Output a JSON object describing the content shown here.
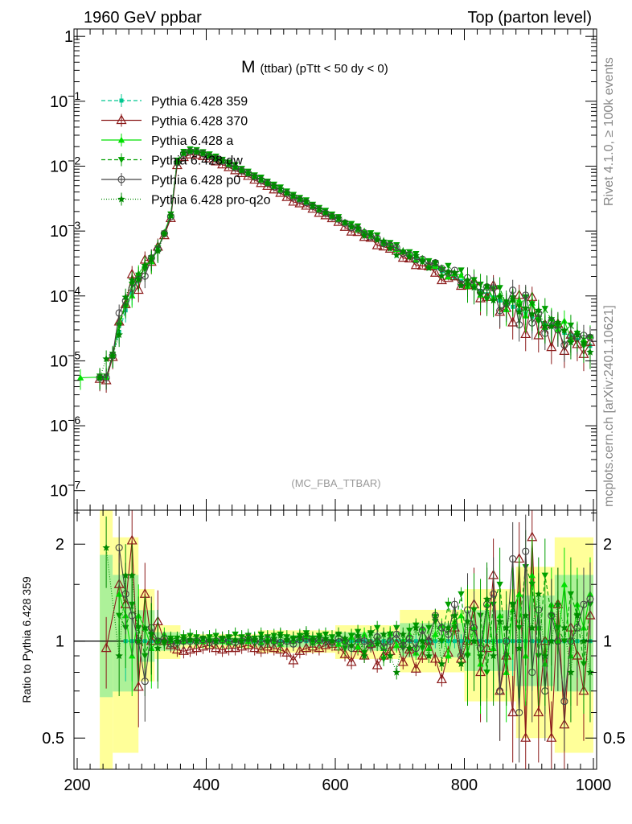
{
  "header": {
    "left": "1960 GeV ppbar",
    "right": "Top (parton level)"
  },
  "side_labels": {
    "rivet": "Rivet 4.1.0, ≥ 100k events",
    "source": "mcplots.cern.ch [arXiv:2401.10621]"
  },
  "chart_data": {
    "type": "line",
    "title": "M (ttbar) (pTtt < 50 dy < 0)",
    "title_main": "M",
    "title_sub": "(ttbar) (pTtt < 50 dy < 0)",
    "watermark": "(MC_FBA_TTBAR)",
    "xlabel": "",
    "ylabel": "",
    "ratio_ylabel": "Ratio to Pythia 6.428 359",
    "xlim": [
      195,
      1005
    ],
    "ylim": [
      5e-08,
      1.3
    ],
    "yscale": "log",
    "ratio_ylim": [
      0.4,
      2.55
    ],
    "x_ticks": [
      "200",
      "400",
      "600",
      "800",
      "1000"
    ],
    "x_tick_values": [
      200,
      400,
      600,
      800,
      1000
    ],
    "y_ticks": [
      "1",
      "10^-1",
      "10^-2",
      "10^-3",
      "10^-4",
      "10^-5",
      "10^-6",
      "10^-7"
    ],
    "y_tick_labels": [
      {
        "mant": "1",
        "exp": ""
      },
      {
        "mant": "10",
        "exp": "−1"
      },
      {
        "mant": "10",
        "exp": "−2"
      },
      {
        "mant": "10",
        "exp": "−3"
      },
      {
        "mant": "10",
        "exp": "−4"
      },
      {
        "mant": "10",
        "exp": "−5"
      },
      {
        "mant": "10",
        "exp": "−6"
      },
      {
        "mant": "10",
        "exp": "−7"
      }
    ],
    "y_tick_values": [
      1,
      0.1,
      0.01,
      0.001,
      0.0001,
      1e-05,
      1e-06,
      1e-07
    ],
    "ratio_ticks": [
      "0.5",
      "1",
      "2"
    ],
    "ratio_tick_values": [
      0.5,
      1,
      2
    ],
    "legend_position": "top-left",
    "x": [
      205,
      235,
      245,
      255,
      265,
      275,
      285,
      295,
      305,
      315,
      325,
      335,
      345,
      355,
      365,
      375,
      385,
      395,
      405,
      415,
      425,
      435,
      445,
      455,
      465,
      475,
      485,
      495,
      505,
      515,
      525,
      535,
      545,
      555,
      565,
      575,
      585,
      595,
      605,
      615,
      625,
      635,
      645,
      655,
      665,
      675,
      685,
      695,
      705,
      715,
      725,
      735,
      745,
      755,
      765,
      775,
      785,
      795,
      805,
      815,
      825,
      835,
      845,
      855,
      865,
      875,
      885,
      895,
      905,
      915,
      925,
      935,
      945,
      955,
      965,
      975,
      985,
      995
    ],
    "reference_values": [
      0,
      5.5e-06,
      5.5e-06,
      1.2e-05,
      2.8e-05,
      6e-05,
      0.00011,
      0.00018,
      0.00027,
      0.00035,
      0.00052,
      0.0009,
      0.0017,
      0.0115,
      0.0155,
      0.0168,
      0.0165,
      0.0155,
      0.0142,
      0.013,
      0.0118,
      0.0106,
      0.0095,
      0.0085,
      0.0076,
      0.0068,
      0.0061,
      0.0054,
      0.0048,
      0.0043,
      0.0038,
      0.0034,
      0.003,
      0.0027,
      0.0024,
      0.0021,
      0.00188,
      0.00168,
      0.0015,
      0.00133,
      0.00119,
      0.00106,
      0.00094,
      0.00084,
      0.00075,
      0.00067,
      0.0006,
      0.00053,
      0.00047,
      0.00042,
      0.00038,
      0.00034,
      0.0003,
      0.00027,
      0.00024,
      0.000215,
      0.00019,
      0.00017,
      0.000152,
      0.000135,
      0.00012,
      0.000106,
      9.5e-05,
      8.5e-05,
      7.6e-05,
      6.8e-05,
      6e-05,
      5.4e-05,
      4.8e-05,
      4.3e-05,
      3.8e-05,
      3.4e-05,
      3e-05,
      2.7e-05,
      2.4e-05,
      2.1e-05,
      1.9e-05,
      1.7e-05
    ],
    "ratio_band": [
      {
        "x": [
          235,
          255
        ],
        "lo": 0.4,
        "hi": 2.55
      },
      {
        "x": [
          255,
          295
        ],
        "lo": 0.45,
        "hi": 2.1
      },
      {
        "x": [
          295,
          320
        ],
        "lo": 0.75,
        "hi": 1.45
      },
      {
        "x": [
          320,
          360
        ],
        "lo": 0.88,
        "hi": 1.12
      },
      {
        "x": [
          360,
          480
        ],
        "lo": 0.95,
        "hi": 1.05
      },
      {
        "x": [
          480,
          600
        ],
        "lo": 0.92,
        "hi": 1.08
      },
      {
        "x": [
          600,
          700
        ],
        "lo": 0.88,
        "hi": 1.12
      },
      {
        "x": [
          700,
          800
        ],
        "lo": 0.8,
        "hi": 1.25
      },
      {
        "x": [
          800,
          880
        ],
        "lo": 0.65,
        "hi": 1.45
      },
      {
        "x": [
          880,
          940
        ],
        "lo": 0.5,
        "hi": 1.7
      },
      {
        "x": [
          940,
          1000
        ],
        "lo": 0.45,
        "hi": 2.1
      }
    ],
    "series": [
      {
        "name": "Pythia 6.428 359",
        "color": "#00c890",
        "marker": "square",
        "dash": "5,3",
        "scale": 1.0,
        "ratio": [
          0,
          0,
          0,
          0,
          0,
          1,
          1,
          1,
          1,
          1,
          1,
          1,
          1,
          1,
          1,
          1,
          1,
          1,
          1,
          1,
          1,
          1,
          1,
          1,
          1,
          1,
          1,
          1,
          1,
          1,
          1,
          1,
          1,
          1,
          1,
          1,
          1,
          1,
          1,
          1,
          1,
          1,
          1,
          1,
          1,
          1,
          1,
          1,
          1,
          1,
          1,
          1,
          1,
          1,
          1,
          1,
          1,
          1,
          1,
          1,
          1,
          1,
          1,
          1,
          1,
          1,
          1,
          1,
          1,
          1,
          1,
          1,
          1,
          1,
          1,
          1,
          1,
          1
        ]
      },
      {
        "name": "Pythia 6.428 370",
        "color": "#8b1a1a",
        "marker": "triangle-open",
        "dash": "",
        "scale": 0.95,
        "ratio": [
          0,
          0,
          0.95,
          0,
          1.5,
          1.3,
          2.05,
          0.72,
          1.4,
          1.0,
          1.15,
          1.0,
          0.97,
          0.94,
          0.93,
          0.94,
          0.95,
          0.96,
          0.97,
          0.95,
          0.94,
          0.95,
          0.95,
          0.96,
          0.97,
          0.95,
          0.94,
          0.96,
          0.95,
          0.94,
          0.92,
          0.87,
          0.93,
          0.95,
          0.96,
          0.95,
          0.97,
          0.98,
          0.96,
          0.91,
          0.86,
          0.95,
          0.9,
          0.98,
          0.84,
          0.9,
          0.93,
          0.98,
          0.86,
          0.94,
          0.82,
          0.9,
          1.0,
          0.88,
          0.76,
          0.92,
          1.1,
          0.88,
          1.0,
          1.3,
          0.8,
          0.95,
          1.6,
          0.7,
          0.9,
          0.6,
          1.8,
          0.5,
          2.1,
          0.6,
          1.0,
          0.5,
          1.3,
          0.55,
          1.1,
          0.9,
          0.7,
          1.2
        ]
      },
      {
        "name": "Pythia 6.428 a",
        "color": "#00e000",
        "marker": "triangle",
        "dash": "",
        "scale": 1.02,
        "ratio": [
          0,
          0,
          0,
          0,
          1.4,
          1.2,
          0.9,
          1.2,
          1.1,
          0.95,
          1.0,
          1.05,
          1.0,
          1.0,
          1.0,
          1.01,
          1.02,
          1.0,
          1.01,
          1.02,
          1.0,
          0.99,
          1.01,
          1.02,
          1.0,
          1.01,
          0.99,
          1.02,
          1.0,
          0.98,
          1.01,
          1.0,
          1.02,
          1.03,
          0.99,
          1.0,
          1.02,
          1.01,
          0.98,
          1.0,
          1.03,
          0.96,
          1.05,
          0.98,
          1.02,
          0.95,
          1.06,
          0.97,
          1.0,
          1.05,
          0.92,
          1.1,
          0.95,
          1.05,
          1.12,
          0.9,
          1.15,
          1.2,
          0.92,
          1.1,
          0.85,
          1.3,
          0.95,
          1.2,
          0.8,
          1.25,
          1.4,
          0.9,
          1.6,
          1.1,
          0.85,
          1.3,
          1.0,
          1.5,
          0.9,
          1.3,
          1.1,
          1.4
        ]
      },
      {
        "name": "Pythia 6.428 dw",
        "color": "#00a000",
        "marker": "triangle-down",
        "dash": "5,3",
        "scale": 1.05,
        "ratio": [
          0,
          0,
          0,
          0,
          1.2,
          1.1,
          1.3,
          1.1,
          0.9,
          1.05,
          1.0,
          0.98,
          1.02,
          1.02,
          1.03,
          1.04,
          1.03,
          1.02,
          1.03,
          1.04,
          1.02,
          1.03,
          1.05,
          1.03,
          1.04,
          1.02,
          1.05,
          1.03,
          1.04,
          1.05,
          1.03,
          1.02,
          1.04,
          1.06,
          1.02,
          1.04,
          1.05,
          1.03,
          1.05,
          0.95,
          1.04,
          1.07,
          0.92,
          1.06,
          1.1,
          0.88,
          1.05,
          1.1,
          0.95,
          1.08,
          1.12,
          0.95,
          1.1,
          1.15,
          1.0,
          1.3,
          1.1,
          1.4,
          0.9,
          1.25,
          1.2,
          0.8,
          1.3,
          1.5,
          0.9,
          1.3,
          1.1,
          1.7,
          1.5,
          0.9,
          1.6,
          1.2,
          1.1,
          1.0,
          1.4,
          1.2,
          0.85,
          1.3
        ]
      },
      {
        "name": "Pythia 6.428 p0",
        "color": "#444444",
        "marker": "circle-open",
        "dash": "",
        "scale": 1.0,
        "ratio": [
          0,
          0,
          0,
          0,
          1.95,
          1.4,
          1.2,
          1.0,
          0.75,
          1.1,
          1.0,
          1.02,
          0.98,
          0.99,
          1.0,
          1.0,
          1.0,
          1.01,
          0.99,
          1.0,
          1.01,
          1.0,
          0.99,
          1.0,
          1.02,
          1.0,
          0.99,
          1.01,
          1.0,
          0.99,
          1.0,
          0.98,
          1.01,
          1.02,
          1.0,
          1.01,
          1.0,
          0.99,
          1.02,
          1.0,
          0.95,
          1.02,
          1.0,
          0.97,
          1.03,
          0.96,
          1.0,
          1.05,
          0.97,
          1.02,
          0.95,
          1.08,
          1.0,
          1.2,
          1.1,
          1.05,
          1.3,
          0.9,
          1.25,
          1.1,
          0.95,
          1.3,
          1.4,
          0.7,
          1.0,
          1.8,
          0.6,
          1.9,
          0.8,
          1.25,
          0.7,
          1.2,
          1.0,
          0.65,
          1.0,
          1.1,
          1.3,
          1.35
        ]
      },
      {
        "name": "Pythia 6.428 pro-q2o",
        "color": "#008800",
        "marker": "star",
        "dash": "1,2",
        "scale": 1.0,
        "ratio": [
          0,
          0,
          1.95,
          0,
          0.9,
          1.6,
          1.6,
          1.0,
          1.1,
          1.05,
          0.95,
          1.0,
          1.01,
          1.0,
          1.02,
          1.01,
          1.0,
          1.02,
          1.01,
          1.0,
          1.02,
          1.03,
          1.01,
          1.0,
          1.02,
          1.01,
          1.03,
          1.0,
          1.02,
          1.04,
          1.01,
          1.02,
          1.03,
          1.05,
          1.01,
          1.03,
          1.02,
          1.0,
          1.05,
          1.02,
          0.97,
          1.04,
          0.9,
          1.06,
          0.98,
          1.05,
          0.9,
          0.8,
          1.05,
          0.95,
          1.1,
          1.0,
          0.9,
          1.2,
          0.85,
          1.1,
          1.2,
          0.85,
          1.15,
          1.0,
          0.9,
          1.35,
          0.9,
          1.15,
          1.1,
          1.3,
          0.95,
          1.2,
          1.1,
          1.4,
          0.9,
          1.0,
          1.3,
          1.1,
          0.8,
          1.2,
          1.0,
          0.8
        ]
      }
    ]
  }
}
